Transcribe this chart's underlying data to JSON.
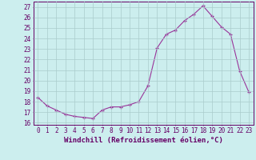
{
  "x": [
    0,
    1,
    2,
    3,
    4,
    5,
    6,
    7,
    8,
    9,
    10,
    11,
    12,
    13,
    14,
    15,
    16,
    17,
    18,
    19,
    20,
    21,
    22,
    23
  ],
  "y": [
    18.4,
    17.6,
    17.2,
    16.8,
    16.6,
    16.5,
    16.4,
    17.2,
    17.5,
    17.5,
    17.7,
    18.0,
    19.5,
    23.1,
    24.4,
    24.8,
    25.7,
    26.3,
    27.1,
    26.1,
    25.1,
    24.4,
    20.9,
    18.9
  ],
  "line_color": "#993399",
  "marker_color": "#993399",
  "bg_color": "#cceeee",
  "grid_color": "#aacccc",
  "xlabel": "Windchill (Refroidissement éolien,°C)",
  "ylim": [
    15.8,
    27.5
  ],
  "yticks": [
    16,
    17,
    18,
    19,
    20,
    21,
    22,
    23,
    24,
    25,
    26,
    27
  ],
  "xticks": [
    0,
    1,
    2,
    3,
    4,
    5,
    6,
    7,
    8,
    9,
    10,
    11,
    12,
    13,
    14,
    15,
    16,
    17,
    18,
    19,
    20,
    21,
    22,
    23
  ],
  "xlim": [
    -0.5,
    23.5
  ],
  "tick_color": "#660066",
  "label_color": "#660066",
  "font_size": 5.5,
  "xlabel_fontsize": 6.5
}
